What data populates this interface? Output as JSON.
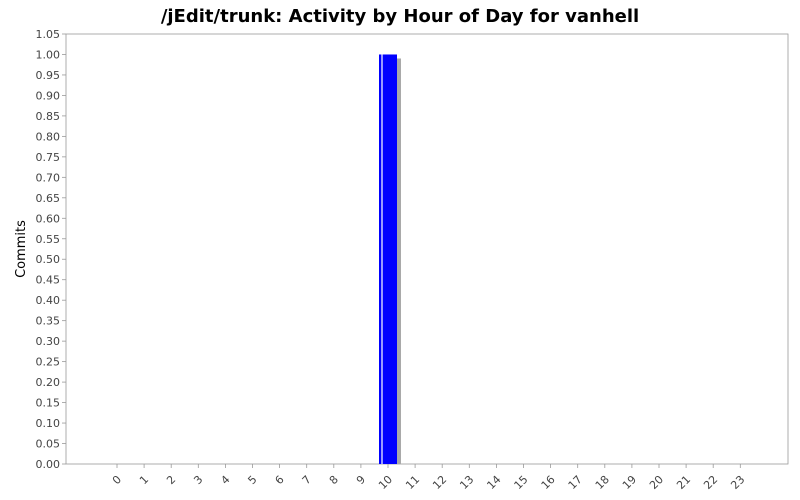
{
  "chart_data": {
    "type": "bar",
    "title": "/jEdit/trunk: Activity by Hour of Day for vanhell",
    "xlabel": "",
    "ylabel": "Commits",
    "categories": [
      "0",
      "1",
      "2",
      "3",
      "4",
      "5",
      "6",
      "7",
      "8",
      "9",
      "10",
      "11",
      "12",
      "13",
      "14",
      "15",
      "16",
      "17",
      "18",
      "19",
      "20",
      "21",
      "22",
      "23"
    ],
    "values": [
      0,
      0,
      0,
      0,
      0,
      0,
      0,
      0,
      0,
      0,
      1,
      0,
      0,
      0,
      0,
      0,
      0,
      0,
      0,
      0,
      0,
      0,
      0,
      0
    ],
    "ylim": [
      0,
      1.05
    ],
    "yticks": [
      "0.00",
      "0.05",
      "0.10",
      "0.15",
      "0.20",
      "0.25",
      "0.30",
      "0.35",
      "0.40",
      "0.45",
      "0.50",
      "0.55",
      "0.60",
      "0.65",
      "0.70",
      "0.75",
      "0.80",
      "0.85",
      "0.90",
      "0.95",
      "1.00",
      "1.05"
    ],
    "grid": false,
    "legend": "none",
    "bar_color": "#0000ff",
    "shadow_color": "#a9a9a9"
  }
}
